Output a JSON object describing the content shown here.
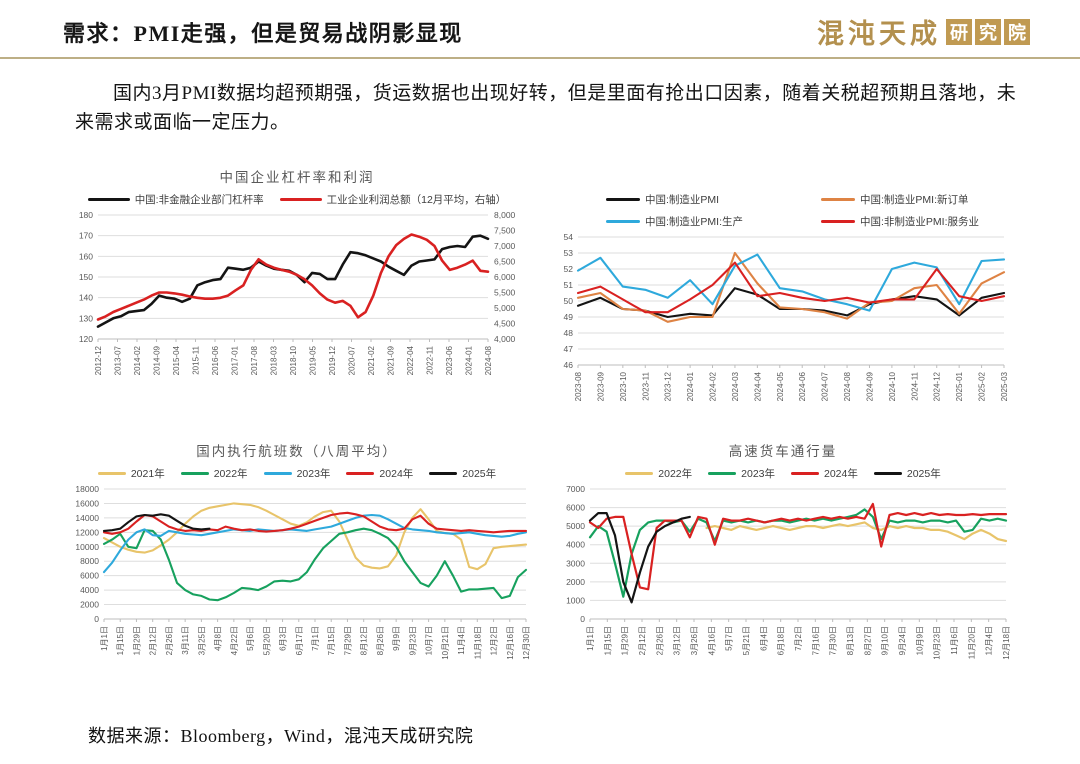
{
  "header": {
    "title": "需求：PMI走强，但是贸易战阴影显现",
    "logo_text": "混沌天成",
    "logo_seal_chars": [
      "研",
      "究",
      "院"
    ],
    "accent_color": "#b3904e"
  },
  "body": {
    "paragraph": "国内3月PMI数据均超预期强，货运数据也出现好转，但是里面有抢出口因素，随着关税超预期且落地，未来需求或面临一定压力。"
  },
  "footer": {
    "source": "数据来源：Bloomberg，Wind，混沌天成研究院"
  },
  "colors": {
    "black": "#141414",
    "red": "#d92121",
    "orange": "#de8344",
    "cyan": "#2ea9dc",
    "green": "#17a15e",
    "yellow": "#e8c46a",
    "grid": "#dedede",
    "axis_text": "#595959"
  },
  "chart_data": [
    {
      "type": "line",
      "title": "中国企业杠杆率和利润",
      "x_labels": [
        "2012-12",
        "2013-07",
        "2014-02",
        "2014-09",
        "2015-04",
        "2015-11",
        "2016-06",
        "2017-01",
        "2017-08",
        "2018-03",
        "2018-10",
        "2019-05",
        "2019-12",
        "2020-07",
        "2021-02",
        "2021-09",
        "2022-04",
        "2022-11",
        "2023-06",
        "2024-01",
        "2024-08"
      ],
      "y_left": {
        "min": 120,
        "max": 180,
        "step": 10,
        "comma": false
      },
      "y_right": {
        "min": 4000,
        "max": 8000,
        "step": 500,
        "comma": true
      },
      "grid": true,
      "legend_position": "top",
      "series": [
        {
          "name": "中国:非金融企业部门杠杆率",
          "color": "#141414",
          "axis": "left",
          "values": [
            126,
            128,
            130,
            131,
            133,
            133.5,
            134,
            137,
            141,
            140,
            139.5,
            138,
            139.5,
            146,
            147.5,
            148.5,
            149,
            154.5,
            154,
            153.5,
            154.5,
            157.5,
            155.5,
            154,
            153.5,
            153,
            151,
            147.5,
            152,
            151.5,
            149,
            149,
            156,
            162,
            161.5,
            160.5,
            159,
            157.5,
            155,
            153,
            151,
            155.5,
            157.5,
            158,
            158.5,
            163.5,
            164.5,
            165,
            164.5,
            169.5,
            170,
            168.5
          ]
        },
        {
          "name": "工业企业利润总额（12月平均，右轴）",
          "color": "#d92121",
          "axis": "right",
          "values": [
            4630,
            4730,
            4870,
            4970,
            5070,
            5170,
            5270,
            5400,
            5500,
            5500,
            5470,
            5430,
            5370,
            5330,
            5300,
            5300,
            5330,
            5400,
            5570,
            5730,
            6230,
            6570,
            6400,
            6300,
            6230,
            6170,
            6070,
            5930,
            5730,
            5470,
            5270,
            5170,
            5230,
            5070,
            4700,
            4870,
            5400,
            6130,
            6670,
            7030,
            7230,
            7370,
            7300,
            7200,
            7000,
            6530,
            6230,
            6300,
            6400,
            6530,
            6200,
            6170
          ]
        }
      ]
    },
    {
      "type": "line",
      "title": "",
      "x_labels": [
        "2023-08",
        "2023-09",
        "2023-10",
        "2023-11",
        "2023-12",
        "2024-01",
        "2024-02",
        "2024-03",
        "2024-04",
        "2024-05",
        "2024-06",
        "2024-07",
        "2024-08",
        "2024-09",
        "2024-10",
        "2024-11",
        "2024-12",
        "2025-01",
        "2025-02",
        "2025-03"
      ],
      "y_left": {
        "min": 46,
        "max": 54,
        "step": 1,
        "comma": false
      },
      "grid": true,
      "legend_position": "top",
      "series": [
        {
          "name": "中国:制造业PMI",
          "color": "#141414",
          "axis": "left",
          "values": [
            49.7,
            50.2,
            49.5,
            49.4,
            49.0,
            49.2,
            49.1,
            50.8,
            50.4,
            49.5,
            49.5,
            49.4,
            49.1,
            49.8,
            50.1,
            50.3,
            50.1,
            49.1,
            50.2,
            50.5
          ]
        },
        {
          "name": "中国:制造业PMI:新订单",
          "color": "#de8344",
          "axis": "left",
          "values": [
            50.2,
            50.5,
            49.5,
            49.4,
            48.7,
            49.0,
            49.0,
            53.0,
            51.1,
            49.6,
            49.5,
            49.3,
            48.9,
            49.9,
            50.0,
            50.8,
            51.0,
            49.2,
            51.1,
            51.8
          ]
        },
        {
          "name": "中国:制造业PMI:生产",
          "color": "#2ea9dc",
          "axis": "left",
          "values": [
            51.9,
            52.7,
            50.9,
            50.7,
            50.2,
            51.3,
            49.8,
            52.2,
            52.9,
            50.8,
            50.6,
            50.1,
            49.8,
            49.4,
            52.0,
            52.4,
            52.1,
            49.8,
            52.5,
            52.6
          ]
        },
        {
          "name": "中国:非制造业PMI:服务业",
          "color": "#d92121",
          "axis": "left",
          "values": [
            50.5,
            50.9,
            50.1,
            49.3,
            49.3,
            50.1,
            51.0,
            52.4,
            50.3,
            50.5,
            50.2,
            50.0,
            50.2,
            49.9,
            50.1,
            50.1,
            52.0,
            50.3,
            50.0,
            50.3
          ]
        }
      ]
    },
    {
      "type": "line",
      "title": "国内执行航班数（八周平均）",
      "x_labels": [
        "1月1日",
        "1月15日",
        "1月29日",
        "2月12日",
        "2月26日",
        "3月11日",
        "3月25日",
        "4月8日",
        "4月22日",
        "5月6日",
        "5月20日",
        "6月3日",
        "6月17日",
        "7月1日",
        "7月15日",
        "7月29日",
        "8月12日",
        "8月26日",
        "9月9日",
        "9月23日",
        "10月7日",
        "10月21日",
        "11月4日",
        "11月18日",
        "12月2日",
        "12月16日",
        "12月30日"
      ],
      "y_left": {
        "min": 0,
        "max": 18000,
        "step": 2000,
        "comma": false
      },
      "grid": true,
      "legend_position": "top",
      "series": [
        {
          "name": "2021年",
          "color": "#e8c46a",
          "axis": "left",
          "values": [
            11200,
            10600,
            10000,
            9600,
            9300,
            9200,
            9500,
            10200,
            11000,
            12000,
            13200,
            14200,
            15000,
            15400,
            15600,
            15800,
            16000,
            15900,
            15800,
            15500,
            15000,
            14400,
            13800,
            13200,
            12900,
            13400,
            14200,
            14800,
            15000,
            13500,
            11000,
            8500,
            7400,
            7100,
            7000,
            7300,
            8800,
            12000,
            14000,
            15200,
            13800,
            12200,
            11900,
            11800,
            11000,
            7200,
            6900,
            7600,
            9800,
            10000,
            10100,
            10200,
            10300
          ]
        },
        {
          "name": "2022年",
          "color": "#17a15e",
          "axis": "left",
          "values": [
            10400,
            11000,
            11800,
            10000,
            9800,
            12300,
            12200,
            11000,
            8200,
            5000,
            4000,
            3400,
            3200,
            2700,
            2600,
            3000,
            3600,
            4300,
            4200,
            4000,
            4500,
            5200,
            5300,
            5200,
            5500,
            6500,
            8300,
            9800,
            10800,
            11800,
            12000,
            12300,
            12500,
            12300,
            11800,
            11200,
            10000,
            8000,
            6500,
            5000,
            4500,
            6000,
            8000,
            6000,
            3800,
            4100,
            4100,
            4200,
            4300,
            2900,
            3200,
            5800,
            6800
          ]
        },
        {
          "name": "2023年",
          "color": "#2ea9dc",
          "axis": "left",
          "values": [
            6500,
            7800,
            9500,
            11000,
            12000,
            12400,
            11600,
            11500,
            12200,
            12000,
            11800,
            11700,
            11600,
            11800,
            12000,
            12200,
            12400,
            12300,
            12200,
            12400,
            12300,
            12200,
            12300,
            12400,
            12300,
            12200,
            12400,
            12600,
            12800,
            13200,
            13600,
            14000,
            14300,
            14400,
            14300,
            13800,
            13200,
            12600,
            12400,
            12300,
            12200,
            12000,
            11900,
            11800,
            11900,
            12000,
            11800,
            11600,
            11500,
            11400,
            11500,
            11800,
            12000
          ]
        },
        {
          "name": "2024年",
          "color": "#d92121",
          "axis": "left",
          "values": [
            12000,
            11800,
            12000,
            12500,
            13500,
            14400,
            14200,
            13500,
            12800,
            12400,
            12200,
            12300,
            12200,
            12400,
            12300,
            12800,
            12500,
            12300,
            12400,
            12200,
            12100,
            12200,
            12300,
            12500,
            12800,
            13200,
            13600,
            14000,
            14400,
            14600,
            14700,
            14500,
            14200,
            13500,
            12800,
            12400,
            12300,
            12500,
            13800,
            14300,
            13200,
            12500,
            12400,
            12300,
            12200,
            12300,
            12200,
            12100,
            12000,
            12100,
            12200,
            12200,
            12200
          ]
        },
        {
          "name": "2025年",
          "color": "#141414",
          "axis": "left",
          "values": [
            12200,
            12300,
            12500,
            13400,
            14200,
            14400,
            14300,
            14500,
            14300,
            13600,
            12900,
            12500,
            12400,
            12500,
            null,
            null,
            null,
            null,
            null,
            null,
            null,
            null,
            null,
            null,
            null,
            null,
            null,
            null,
            null,
            null,
            null,
            null,
            null,
            null,
            null,
            null,
            null,
            null,
            null,
            null,
            null,
            null,
            null,
            null,
            null,
            null,
            null,
            null,
            null,
            null,
            null,
            null,
            null
          ]
        }
      ]
    },
    {
      "type": "line",
      "title": "高速货车通行量",
      "x_labels": [
        "1月1日",
        "1月15日",
        "1月29日",
        "2月12日",
        "2月26日",
        "3月12日",
        "3月26日",
        "4月16日",
        "5月7日",
        "5月21日",
        "6月4日",
        "6月18日",
        "7月2日",
        "7月16日",
        "7月30日",
        "8月13日",
        "8月27日",
        "9月10日",
        "9月24日",
        "10月9日",
        "10月23日",
        "11月6日",
        "11月20日",
        "12月4日",
        "12月18日"
      ],
      "y_left": {
        "min": 0,
        "max": 7000,
        "step": 1000,
        "comma": false
      },
      "grid": true,
      "legend_position": "top",
      "series": [
        {
          "name": "2022年",
          "color": "#e8c46a",
          "axis": "left",
          "values": [
            null,
            null,
            null,
            null,
            null,
            null,
            null,
            null,
            null,
            null,
            null,
            null,
            null,
            null,
            4900,
            5000,
            4900,
            4800,
            5000,
            4900,
            4800,
            4900,
            5000,
            4900,
            4800,
            4900,
            5000,
            5000,
            4900,
            5000,
            5100,
            5000,
            5100,
            5200,
            4900,
            4800,
            5000,
            4900,
            5000,
            4900,
            4900,
            4800,
            4800,
            4700,
            4500,
            4300,
            4600,
            4800,
            4600,
            4300,
            4200
          ]
        },
        {
          "name": "2023年",
          "color": "#17a15e",
          "axis": "left",
          "values": [
            4400,
            5000,
            4700,
            3000,
            1200,
            3500,
            4800,
            5200,
            5300,
            5300,
            5200,
            5300,
            4700,
            5400,
            5200,
            4200,
            5300,
            5200,
            5300,
            5200,
            5300,
            5200,
            5300,
            5300,
            5200,
            5300,
            5400,
            5300,
            5400,
            5300,
            5400,
            5500,
            5600,
            5900,
            5500,
            4300,
            5300,
            5200,
            5300,
            5300,
            5200,
            5300,
            5300,
            5200,
            5300,
            4700,
            4800,
            5400,
            5300,
            5400,
            5300
          ]
        },
        {
          "name": "2024年",
          "color": "#d92121",
          "axis": "left",
          "values": [
            5200,
            4900,
            5400,
            5500,
            5500,
            3500,
            1700,
            1600,
            4900,
            5300,
            5300,
            5300,
            4400,
            5500,
            5400,
            4000,
            5400,
            5300,
            5300,
            5400,
            5300,
            5200,
            5300,
            5400,
            5300,
            5400,
            5300,
            5400,
            5500,
            5400,
            5500,
            5400,
            5500,
            5400,
            6200,
            3900,
            5600,
            5700,
            5600,
            5700,
            5600,
            5700,
            5600,
            5650,
            5600,
            5600,
            5650,
            5600,
            5650,
            5650,
            5650
          ]
        },
        {
          "name": "2025年",
          "color": "#141414",
          "axis": "left",
          "values": [
            5300,
            5700,
            5700,
            4500,
            2000,
            900,
            2500,
            3900,
            4700,
            5000,
            5200,
            5400,
            5500,
            null,
            null,
            null,
            null,
            null,
            null,
            null,
            null,
            null,
            null,
            null,
            null,
            null,
            null,
            null,
            null,
            null,
            null,
            null,
            null,
            null,
            null,
            null,
            null,
            null,
            null,
            null,
            null,
            null,
            null,
            null,
            null,
            null,
            null,
            null,
            null,
            null,
            null
          ]
        }
      ]
    }
  ]
}
